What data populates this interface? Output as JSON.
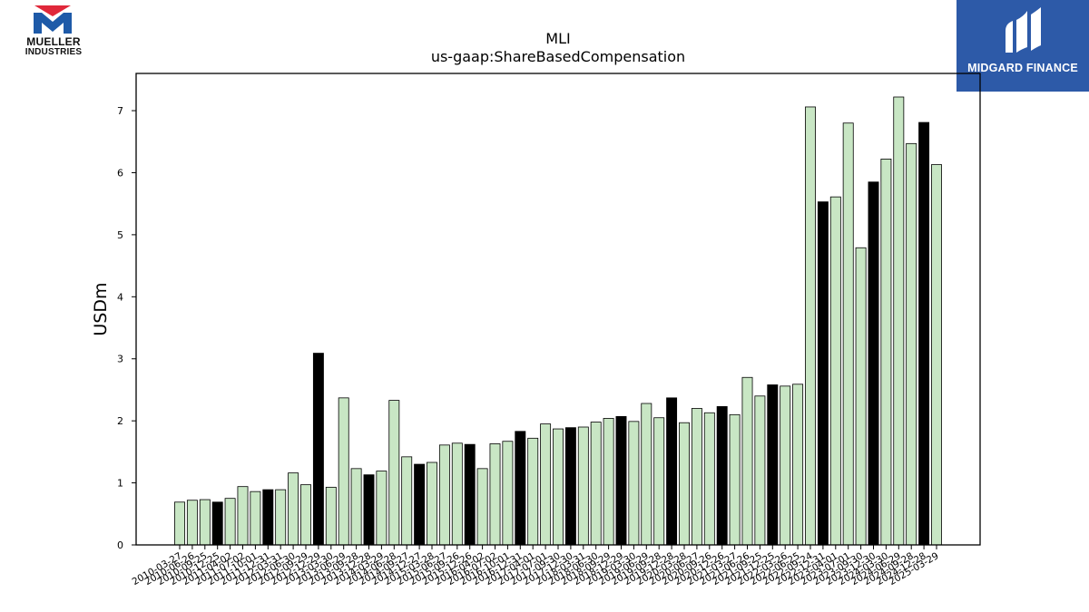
{
  "branding": {
    "left_logo_line1": "MUELLER",
    "left_logo_line2": "INDUSTRIES",
    "right_logo_text": "MIDGARD FINANCE"
  },
  "chart_data": {
    "type": "bar",
    "title": "MLI",
    "subtitle": "us-gaap:ShareBasedCompensation",
    "xlabel": "",
    "ylabel": "USDm",
    "ylim": [
      0,
      7.6
    ],
    "yticks": [
      0,
      1,
      2,
      3,
      4,
      5,
      6,
      7
    ],
    "grid": false,
    "colors": {
      "normal": "#c8e6c4",
      "highlight": "#000000",
      "edge": "#000000"
    },
    "categories": [
      "2010-03-27",
      "2010-06-26",
      "2010-09-25",
      "2010-12-25",
      "2011-04-02",
      "2011-07-02",
      "2011-10-01",
      "2011-12-31",
      "2012-03-31",
      "2012-06-30",
      "2012-09-29",
      "2012-12-29",
      "2013-03-30",
      "2013-06-29",
      "2013-09-28",
      "2013-12-28",
      "2014-03-29",
      "2014-06-28",
      "2014-09-27",
      "2014-12-27",
      "2015-03-28",
      "2015-06-27",
      "2015-09-26",
      "2015-12-26",
      "2016-04-02",
      "2016-07-02",
      "2016-10-01",
      "2016-12-31",
      "2017-04-01",
      "2017-07-01",
      "2017-09-30",
      "2017-12-30",
      "2018-03-31",
      "2018-06-30",
      "2018-09-29",
      "2018-12-29",
      "2019-03-30",
      "2019-06-29",
      "2019-09-28",
      "2019-12-28",
      "2020-03-28",
      "2020-06-27",
      "2020-09-26",
      "2020-12-26",
      "2021-03-27",
      "2021-06-26",
      "2021-09-25",
      "2021-12-25",
      "2022-03-26",
      "2022-06-25",
      "2022-09-24",
      "2022-12-31",
      "2023-04-01",
      "2023-07-01",
      "2023-09-30",
      "2023-12-30",
      "2024-03-30",
      "2024-06-29",
      "2024-09-28",
      "2024-12-28",
      "2025-03-29"
    ],
    "series": [
      {
        "values": [
          0.69,
          0.72,
          0.73,
          0.69,
          0.75,
          0.94,
          0.86,
          0.89,
          0.89,
          1.16,
          0.97,
          3.09,
          0.93,
          2.37,
          1.23,
          1.13,
          1.19,
          2.33,
          1.42,
          1.3,
          1.33,
          1.61,
          1.64,
          1.62,
          1.23,
          1.63,
          1.67,
          1.83,
          1.72,
          1.95,
          1.87,
          1.89,
          1.9,
          1.98,
          2.04,
          2.07,
          1.99,
          2.28,
          2.05,
          2.37,
          1.97,
          2.2,
          2.13,
          2.23,
          2.1,
          2.7,
          2.4,
          2.58,
          2.56,
          2.59,
          7.06,
          5.53,
          5.61,
          6.8,
          4.79,
          5.85,
          6.22,
          7.22,
          6.47,
          6.81,
          6.13
        ],
        "highlight": [
          false,
          false,
          false,
          true,
          false,
          false,
          false,
          true,
          false,
          false,
          false,
          true,
          false,
          false,
          false,
          true,
          false,
          false,
          false,
          true,
          false,
          false,
          false,
          true,
          false,
          false,
          false,
          true,
          false,
          false,
          false,
          true,
          false,
          false,
          false,
          true,
          false,
          false,
          false,
          true,
          false,
          false,
          false,
          true,
          false,
          false,
          false,
          true,
          false,
          false,
          false,
          true,
          false,
          false,
          false,
          true,
          false,
          false,
          false,
          true,
          false
        ]
      }
    ]
  }
}
